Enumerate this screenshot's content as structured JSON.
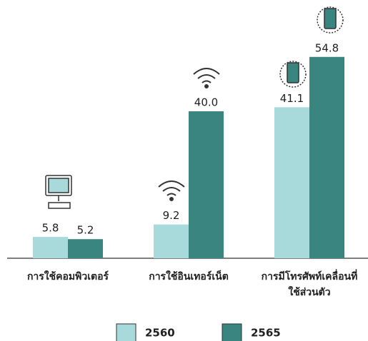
{
  "chart_data": {
    "type": "bar",
    "categories": [
      "การใช้คอมพิวเตอร์",
      "การใช้อินเทอร์เน็ต",
      "การมีโทรศัพท์เคลื่อนที่\nใช้ส่วนตัว"
    ],
    "series": [
      {
        "name": "2560",
        "color": "#a8dadb",
        "values": [
          5.8,
          9.2,
          41.1
        ],
        "value_labels": [
          "5.8",
          "9.2",
          "41.1"
        ]
      },
      {
        "name": "2565",
        "color": "#3a8580",
        "values": [
          5.2,
          40,
          54.8
        ],
        "value_labels": [
          "5.2",
          "40.0",
          "54.8"
        ]
      }
    ],
    "legend": "bottom"
  }
}
